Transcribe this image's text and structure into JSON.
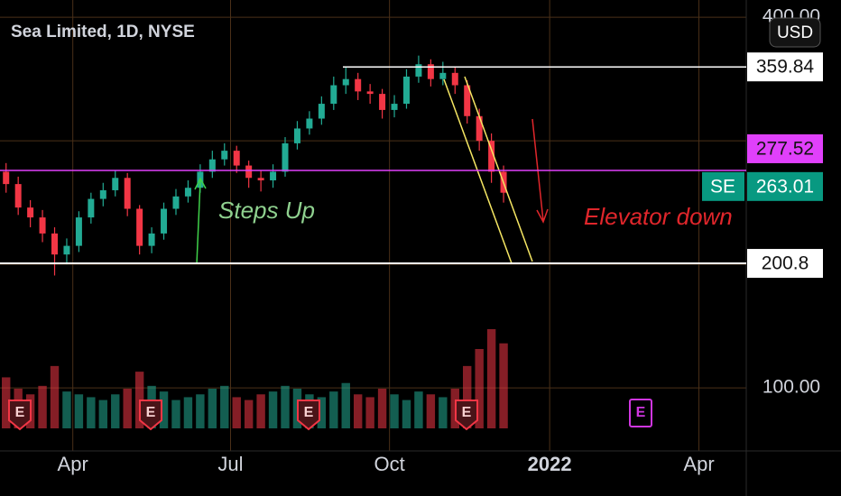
{
  "chart_data": {
    "type": "candlestick",
    "title": "Sea Limited, 1D, NYSE",
    "currency": "USD",
    "open": [
      275,
      265,
      246,
      238,
      225,
      208,
      215,
      238,
      253,
      260,
      270,
      245,
      215,
      225,
      245,
      255,
      262,
      275,
      285,
      292,
      280,
      270,
      268,
      275,
      298,
      310,
      318,
      330,
      345,
      350,
      340,
      338,
      325,
      330,
      352,
      362,
      350,
      355,
      345,
      320,
      300,
      275
    ],
    "high": [
      282,
      271,
      252,
      244,
      230,
      221,
      243,
      258,
      266,
      276,
      274,
      248,
      230,
      250,
      261,
      268,
      281,
      292,
      298,
      296,
      284,
      276,
      281,
      303,
      316,
      324,
      336,
      352,
      360,
      355,
      346,
      342,
      337,
      358,
      369,
      366,
      364,
      360,
      349,
      326,
      306,
      280
    ],
    "low": [
      258,
      240,
      230,
      218,
      191,
      200,
      210,
      233,
      247,
      255,
      239,
      208,
      209,
      220,
      240,
      250,
      258,
      270,
      280,
      274,
      262,
      259,
      262,
      271,
      293,
      305,
      313,
      325,
      338,
      333,
      330,
      318,
      319,
      326,
      347,
      344,
      345,
      338,
      314,
      292,
      266,
      250
    ],
    "close": [
      265,
      246,
      238,
      225,
      208,
      215,
      238,
      253,
      260,
      270,
      245,
      215,
      225,
      245,
      255,
      262,
      275,
      285,
      292,
      280,
      270,
      268,
      275,
      298,
      310,
      318,
      330,
      345,
      350,
      340,
      338,
      325,
      330,
      352,
      362,
      350,
      355,
      345,
      320,
      300,
      275,
      258
    ],
    "volume": [
      18,
      14,
      12,
      15,
      22,
      13,
      12,
      11,
      10,
      12,
      14,
      20,
      15,
      13,
      10,
      11,
      12,
      14,
      15,
      11,
      10,
      12,
      13,
      15,
      14,
      12,
      11,
      13,
      16,
      12,
      11,
      14,
      12,
      10,
      13,
      12,
      11,
      14,
      22,
      28,
      35,
      30
    ],
    "up_color": "#22ab94",
    "down_color": "#f23645",
    "xlim": [
      -0.5,
      61
    ],
    "xticks": [
      {
        "value": 5.5,
        "label": "Apr"
      },
      {
        "value": 18.5,
        "label": "Jul"
      },
      {
        "value": 31.6,
        "label": "Oct"
      },
      {
        "value": 44.8,
        "label": "2022"
      },
      {
        "value": 57.1,
        "label": "Apr"
      }
    ],
    "ylim": [
      49,
      414
    ],
    "yticks": [
      {
        "value": 100,
        "label": "100.00"
      },
      {
        "value": 400,
        "label": "400.00"
      }
    ],
    "ygrid": [
      200,
      300
    ],
    "grid": true,
    "levels": {
      "top": 359.84,
      "pivot": 277.52,
      "last": 263.01,
      "support": 200.8
    },
    "symbol": "SE",
    "annotations": {
      "up": "Steps Up",
      "down": "Elevator down"
    },
    "events": [
      "E",
      "E",
      "E",
      "E",
      "E"
    ]
  }
}
